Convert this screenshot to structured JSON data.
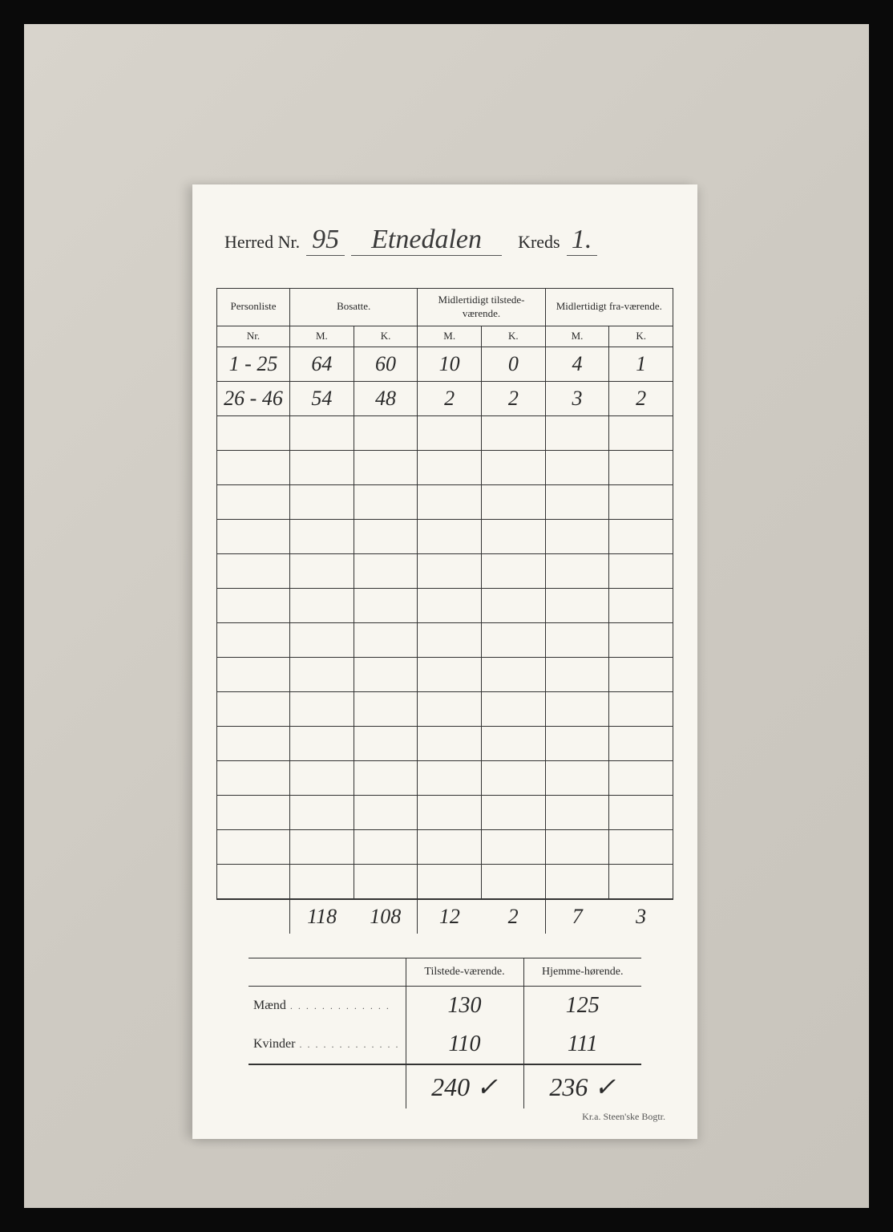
{
  "header": {
    "herred_label": "Herred Nr.",
    "herred_nr": "95",
    "herred_name": "Etnedalen",
    "kreds_label": "Kreds",
    "kreds_nr": "1."
  },
  "main_table": {
    "columns": {
      "personliste": "Personliste",
      "nr": "Nr.",
      "bosatte": "Bosatte.",
      "midl_tilstede": "Midlertidigt tilstede-værende.",
      "midl_fra": "Midlertidigt fra-værende.",
      "m": "M.",
      "k": "K."
    },
    "rows": [
      {
        "nr": "1 - 25",
        "bm": "64",
        "bk": "60",
        "tm": "10",
        "tk": "0",
        "fm": "4",
        "fk": "1"
      },
      {
        "nr": "26 - 46",
        "bm": "54",
        "bk": "48",
        "tm": "2",
        "tk": "2",
        "fm": "3",
        "fk": "2"
      }
    ],
    "empty_row_count": 14,
    "totals": {
      "bm": "118",
      "bk": "108",
      "tm": "12",
      "tk": "2",
      "fm": "7",
      "fk": "3"
    }
  },
  "summary": {
    "col_tilstede": "Tilstede-værende.",
    "col_hjemme": "Hjemme-hørende.",
    "maend_label": "Mænd",
    "kvinder_label": "Kvinder",
    "maend": {
      "tilstede": "130",
      "hjemme": "125"
    },
    "kvinder": {
      "tilstede": "110",
      "hjemme": "111"
    },
    "total": {
      "tilstede": "240 ✓",
      "hjemme": "236 ✓"
    }
  },
  "footer": "Kr.a.  Steen'ske Bogtr.",
  "style": {
    "page_bg": "#d8d4cc",
    "card_bg": "#f8f6f0",
    "ink": "#2a2a2a",
    "border": "#333333",
    "handwritten_font": "Brush Script MT",
    "printed_font": "Georgia"
  }
}
